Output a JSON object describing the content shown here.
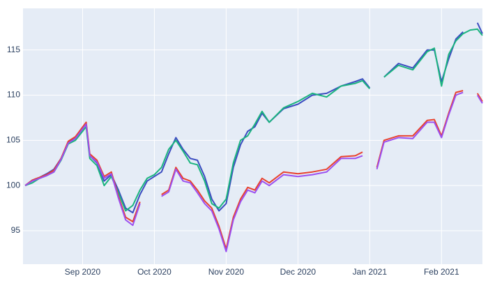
{
  "chart_data": {
    "type": "line",
    "x": [
      0.2,
      0.3,
      0.4,
      0.5,
      0.6,
      0.7,
      0.8,
      0.9,
      1.05,
      1.1,
      1.2,
      1.3,
      1.4,
      1.5,
      1.6,
      1.7,
      1.8,
      1.9,
      2.0,
      2.1,
      2.2,
      2.3,
      2.4,
      2.5,
      2.6,
      2.7,
      2.8,
      2.9,
      3.0,
      3.1,
      3.2,
      3.3,
      3.4,
      3.5,
      3.6,
      3.8,
      4.0,
      4.2,
      4.4,
      4.6,
      4.8,
      4.9,
      5.0,
      5.1,
      5.2,
      5.4,
      5.6,
      5.8,
      5.9,
      6.0,
      6.1,
      6.2,
      6.3,
      6.4,
      6.5,
      6.57
    ],
    "series": [
      {
        "color": "#3b4cc0",
        "values": [
          100,
          100.6,
          100.9,
          101.3,
          101.8,
          103.0,
          104.8,
          105.2,
          106.8,
          103.3,
          102.5,
          100.5,
          101.2,
          99.5,
          97.5,
          97.0,
          99.0,
          100.5,
          101.0,
          101.5,
          103.5,
          105.3,
          104.0,
          103.0,
          102.8,
          101.0,
          98.5,
          97.2,
          98.0,
          102.0,
          104.5,
          106.0,
          106.5,
          108.0,
          107.0,
          108.5,
          109.0,
          110.0,
          110.2,
          111.0,
          111.5,
          111.8,
          110.8,
          null,
          112.0,
          113.5,
          113.0,
          115.0,
          115.0,
          111.5,
          114.0,
          116.2,
          117.0,
          null,
          118.0,
          116.8
        ]
      },
      {
        "color": "#1bb47f",
        "values": [
          100,
          100.3,
          100.8,
          101.1,
          101.5,
          102.8,
          104.6,
          105.0,
          106.5,
          103.0,
          102.2,
          100.0,
          101.0,
          99.2,
          97.2,
          97.8,
          99.5,
          100.8,
          101.2,
          102.0,
          104.0,
          105.0,
          103.8,
          102.5,
          102.3,
          100.5,
          98.0,
          97.5,
          98.5,
          102.5,
          105.0,
          105.5,
          106.8,
          108.2,
          107.0,
          108.6,
          109.3,
          110.2,
          109.8,
          111.0,
          111.3,
          111.6,
          110.7,
          null,
          112.0,
          113.3,
          112.8,
          114.8,
          115.2,
          111.0,
          114.5,
          116.0,
          116.8,
          117.2,
          117.3,
          116.6
        ]
      },
      {
        "color": "#e8412d",
        "values": [
          100,
          100.6,
          100.9,
          101.2,
          101.7,
          103.0,
          104.9,
          105.4,
          107.0,
          103.5,
          102.8,
          101.0,
          101.5,
          98.8,
          96.5,
          96.0,
          98.2,
          null,
          null,
          99.0,
          99.5,
          102.0,
          100.8,
          100.5,
          99.5,
          98.3,
          97.5,
          95.5,
          93.0,
          96.5,
          98.5,
          99.8,
          99.5,
          100.8,
          100.3,
          101.5,
          101.3,
          101.5,
          101.8,
          103.2,
          103.3,
          103.7,
          null,
          102.0,
          105.0,
          105.5,
          105.5,
          107.2,
          107.3,
          105.5,
          108.0,
          110.3,
          110.5,
          null,
          110.2,
          109.3
        ]
      },
      {
        "color": "#9b4ff0",
        "values": [
          100,
          100.5,
          100.8,
          101.1,
          101.5,
          102.9,
          104.7,
          105.2,
          106.8,
          103.3,
          102.6,
          100.8,
          101.3,
          98.6,
          96.2,
          95.6,
          98.0,
          null,
          null,
          98.8,
          99.3,
          101.8,
          100.5,
          100.3,
          99.2,
          98.0,
          97.2,
          95.2,
          92.7,
          96.2,
          98.2,
          99.5,
          99.2,
          100.5,
          100.0,
          101.2,
          101.0,
          101.2,
          101.5,
          103.0,
          103.0,
          103.3,
          null,
          101.8,
          104.8,
          105.3,
          105.2,
          107.0,
          107.0,
          105.3,
          107.8,
          110.0,
          110.3,
          null,
          110.0,
          109.1
        ]
      }
    ],
    "xlim": [
      0.17,
      6.57
    ],
    "xticks": [
      {
        "value": 1,
        "label": "Sep 2020"
      },
      {
        "value": 2,
        "label": "Oct 2020"
      },
      {
        "value": 3,
        "label": "Nov 2020"
      },
      {
        "value": 4,
        "label": "Dec 2020"
      },
      {
        "value": 5,
        "label": "Jan 2021"
      },
      {
        "value": 6,
        "label": "Feb 2021"
      }
    ],
    "ylim": [
      91.3,
      119.6
    ],
    "yticks": [
      95,
      100,
      105,
      110,
      115
    ],
    "grid": true
  }
}
